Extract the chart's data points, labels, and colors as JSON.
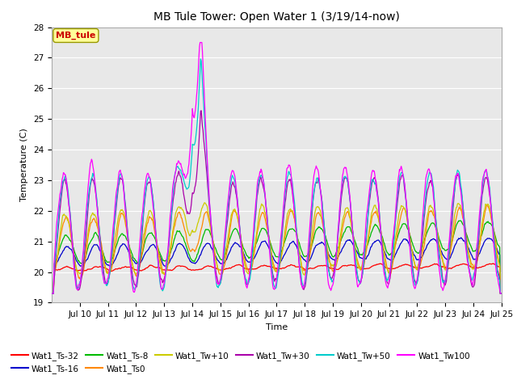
{
  "title": "MB Tule Tower: Open Water 1 (3/19/14-now)",
  "xlabel": "Time",
  "ylabel": "Temperature (C)",
  "ylim": [
    19.0,
    28.0
  ],
  "yticks": [
    19.0,
    20.0,
    21.0,
    22.0,
    23.0,
    24.0,
    25.0,
    26.0,
    27.0,
    28.0
  ],
  "xtick_labels": [
    "Jul 10",
    "Jul 11",
    "Jul 12",
    "Jul 13",
    "Jul 14",
    "Jul 15",
    "Jul 16",
    "Jul 17",
    "Jul 18",
    "Jul 19",
    "Jul 20",
    "Jul 21",
    "Jul 22",
    "Jul 23",
    "Jul 24",
    "Jul 25"
  ],
  "annotation_label": "MB_tule",
  "annotation_color": "#cc0000",
  "annotation_box_facecolor": "#ffff99",
  "annotation_box_edgecolor": "#999900",
  "series_colors": {
    "Wat1_Ts-32": "#ff0000",
    "Wat1_Ts-16": "#0000cc",
    "Wat1_Ts-8": "#00bb00",
    "Wat1_Ts0": "#ff8800",
    "Wat1_Tw+10": "#cccc00",
    "Wat1_Tw+30": "#aa00aa",
    "Wat1_Tw+50": "#00cccc",
    "Wat1_Tw100": "#ff00ff"
  },
  "title_fontsize": 10,
  "axis_fontsize": 8,
  "tick_fontsize": 7.5
}
